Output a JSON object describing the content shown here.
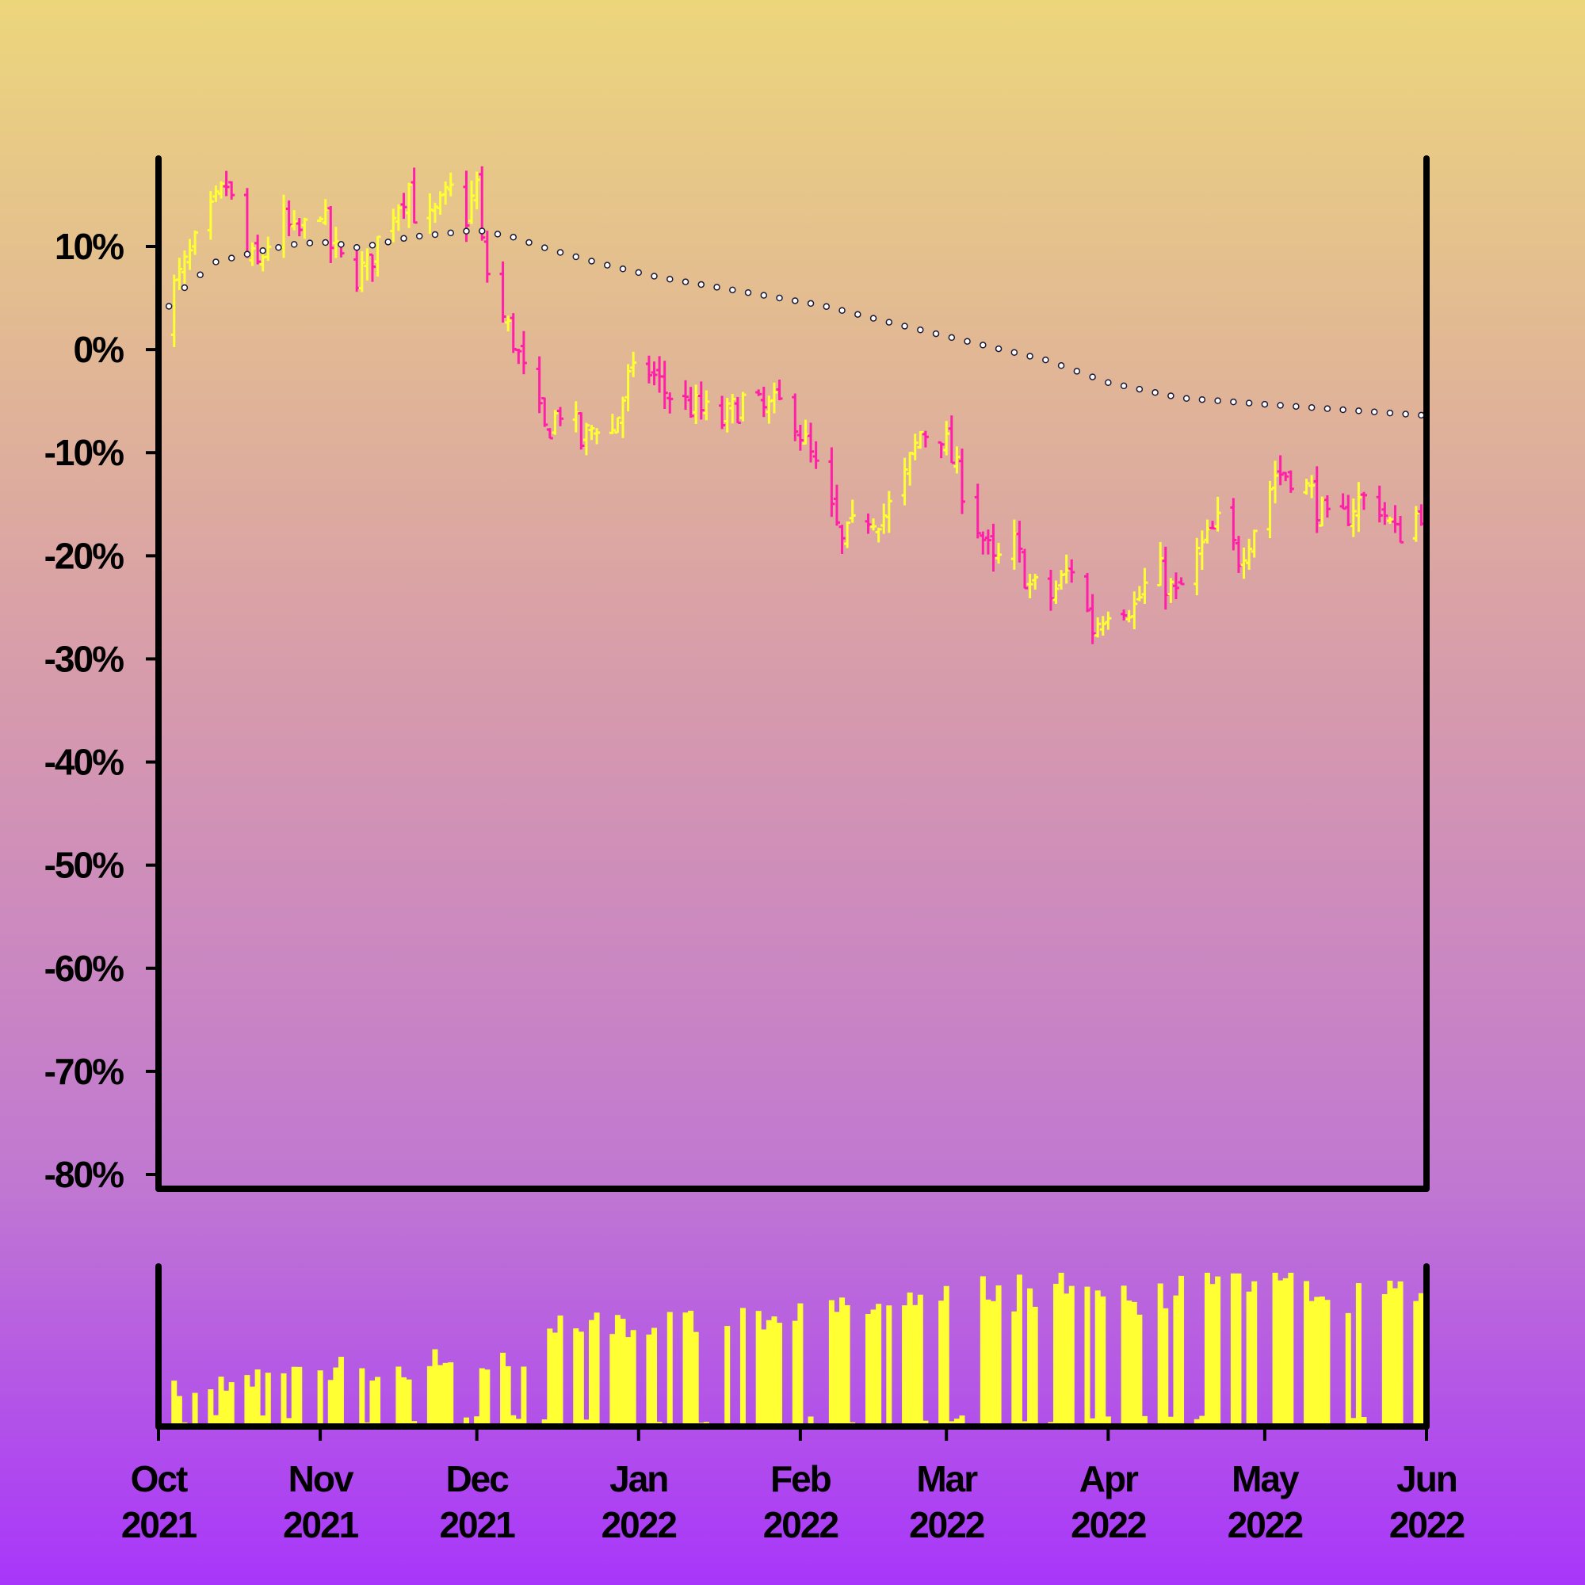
{
  "colors": {
    "up": "#ffff33",
    "down": "#ff1fa8",
    "volume": "#ffff33",
    "ma_marker_stroke": "#1a1a3a",
    "ma_marker_fill": "#ffffff",
    "axis": "#000000"
  },
  "chart_data": [
    {
      "type": "ohlc",
      "title": "",
      "xlabel": "",
      "ylabel": "",
      "y_unit": "percent",
      "ylim": [
        -80,
        17
      ],
      "xlim": [
        "2021-10-01",
        "2022-06-01"
      ],
      "grid": false,
      "y_ticks": [
        {
          "value": 10,
          "label": "10%"
        },
        {
          "value": 0,
          "label": "0%"
        },
        {
          "value": -10,
          "label": "-10%"
        },
        {
          "value": -20,
          "label": "-20%"
        },
        {
          "value": -30,
          "label": "-30%"
        },
        {
          "value": -40,
          "label": "-40%"
        },
        {
          "value": -50,
          "label": "-50%"
        },
        {
          "value": -60,
          "label": "-60%"
        },
        {
          "value": -70,
          "label": "-70%"
        },
        {
          "value": -80,
          "label": "-80%"
        }
      ],
      "x_ticks": [
        {
          "date": "2021-10-01",
          "month": "Oct",
          "year": "2021"
        },
        {
          "date": "2021-11-01",
          "month": "Nov",
          "year": "2021"
        },
        {
          "date": "2021-12-01",
          "month": "Dec",
          "year": "2021"
        },
        {
          "date": "2022-01-01",
          "month": "Jan",
          "year": "2022"
        },
        {
          "date": "2022-02-01",
          "month": "Feb",
          "year": "2022"
        },
        {
          "date": "2022-03-01",
          "month": "Mar",
          "year": "2022"
        },
        {
          "date": "2022-04-01",
          "month": "Apr",
          "year": "2022"
        },
        {
          "date": "2022-05-01",
          "month": "May",
          "year": "2022"
        },
        {
          "date": "2022-06-01",
          "month": "Jun",
          "year": "2022"
        }
      ],
      "close_path": [
        [
          "2021-10-01",
          3
        ],
        [
          "2021-10-08",
          10
        ],
        [
          "2021-10-12",
          14
        ],
        [
          "2021-10-14",
          16
        ],
        [
          "2021-10-18",
          9
        ],
        [
          "2021-10-20",
          8
        ],
        [
          "2021-10-24",
          13
        ],
        [
          "2021-10-27",
          11
        ],
        [
          "2021-10-30",
          12
        ],
        [
          "2021-11-01",
          14
        ],
        [
          "2021-11-03",
          10
        ],
        [
          "2021-11-07",
          7
        ],
        [
          "2021-11-10",
          8
        ],
        [
          "2021-11-14",
          13
        ],
        [
          "2021-11-18",
          16
        ],
        [
          "2021-11-20",
          11
        ],
        [
          "2021-11-23",
          13
        ],
        [
          "2021-11-27",
          16
        ],
        [
          "2021-11-29",
          13
        ],
        [
          "2021-12-01",
          16
        ],
        [
          "2021-12-02",
          10
        ],
        [
          "2021-12-04",
          5
        ],
        [
          "2021-12-08",
          1
        ],
        [
          "2021-12-11",
          -4
        ],
        [
          "2021-12-14",
          -8
        ],
        [
          "2021-12-18",
          -5
        ],
        [
          "2021-12-21",
          -9
        ],
        [
          "2021-12-24",
          -7
        ],
        [
          "2021-12-27",
          -8
        ],
        [
          "2021-12-30",
          -3
        ],
        [
          "2022-01-03",
          -2
        ],
        [
          "2022-01-06",
          -4
        ],
        [
          "2022-01-09",
          -5
        ],
        [
          "2022-01-13",
          -6
        ],
        [
          "2022-01-17",
          -7
        ],
        [
          "2022-01-21",
          -5
        ],
        [
          "2022-01-25",
          -6
        ],
        [
          "2022-01-30",
          -5
        ],
        [
          "2022-02-01",
          -8
        ],
        [
          "2022-02-05",
          -13
        ],
        [
          "2022-02-09",
          -19
        ],
        [
          "2022-02-13",
          -16
        ],
        [
          "2022-02-17",
          -16
        ],
        [
          "2022-02-20",
          -14
        ],
        [
          "2022-02-24",
          -8
        ],
        [
          "2022-02-28",
          -8
        ],
        [
          "2022-03-03",
          -12
        ],
        [
          "2022-03-07",
          -17
        ],
        [
          "2022-03-10",
          -21
        ],
        [
          "2022-03-14",
          -19
        ],
        [
          "2022-03-17",
          -23
        ],
        [
          "2022-03-21",
          -24
        ],
        [
          "2022-03-25",
          -21
        ],
        [
          "2022-03-29",
          -27
        ],
        [
          "2022-04-02",
          -24
        ],
        [
          "2022-04-06",
          -25
        ],
        [
          "2022-04-10",
          -21
        ],
        [
          "2022-04-14",
          -24
        ],
        [
          "2022-04-18",
          -20
        ],
        [
          "2022-04-22",
          -17
        ],
        [
          "2022-04-26",
          -20
        ],
        [
          "2022-04-30",
          -16
        ],
        [
          "2022-05-03",
          -12
        ],
        [
          "2022-05-06",
          -12
        ],
        [
          "2022-05-10",
          -14
        ],
        [
          "2022-05-14",
          -18
        ],
        [
          "2022-05-18",
          -15
        ],
        [
          "2022-05-22",
          -14
        ],
        [
          "2022-05-26",
          -18
        ],
        [
          "2022-06-01",
          -15
        ]
      ],
      "moving_average": [
        [
          "2021-10-01",
          3
        ],
        [
          "2021-10-06",
          6
        ],
        [
          "2021-10-12",
          8.5
        ],
        [
          "2021-10-20",
          9.5
        ],
        [
          "2021-10-28",
          10.3
        ],
        [
          "2021-11-03",
          10.4
        ],
        [
          "2021-11-08",
          9.9
        ],
        [
          "2021-11-12",
          10.2
        ],
        [
          "2021-11-18",
          10.9
        ],
        [
          "2021-11-24",
          11.2
        ],
        [
          "2021-12-01",
          11.6
        ],
        [
          "2021-12-08",
          10.9
        ],
        [
          "2021-12-15",
          9.7
        ],
        [
          "2021-12-25",
          8.3
        ],
        [
          "2022-01-05",
          7.0
        ],
        [
          "2022-01-20",
          5.7
        ],
        [
          "2022-02-05",
          4.3
        ],
        [
          "2022-02-20",
          2.4
        ],
        [
          "2022-03-05",
          0.8
        ],
        [
          "2022-03-20",
          -1.0
        ],
        [
          "2022-04-01",
          -3.2
        ],
        [
          "2022-04-15",
          -4.7
        ],
        [
          "2022-05-01",
          -5.3
        ],
        [
          "2022-05-15",
          -5.8
        ],
        [
          "2022-06-01",
          -6.4
        ]
      ]
    },
    {
      "type": "bar",
      "title": "",
      "xlabel": "",
      "ylabel": "",
      "series_name": "",
      "axis_labels_shown": false,
      "volume_levels": [
        [
          0.18,
          0.25
        ],
        [
          0.25,
          0.33
        ],
        [
          0.35,
          0.4
        ],
        [
          0.55,
          0.65
        ],
        [
          0.6,
          0.65
        ],
        [
          0.68,
          0.8
        ],
        [
          0.72,
          0.95
        ],
        [
          0.7,
          0.93
        ],
        [
          0.8,
          0.98
        ],
        [
          0.72,
          0.9
        ]
      ]
    }
  ]
}
